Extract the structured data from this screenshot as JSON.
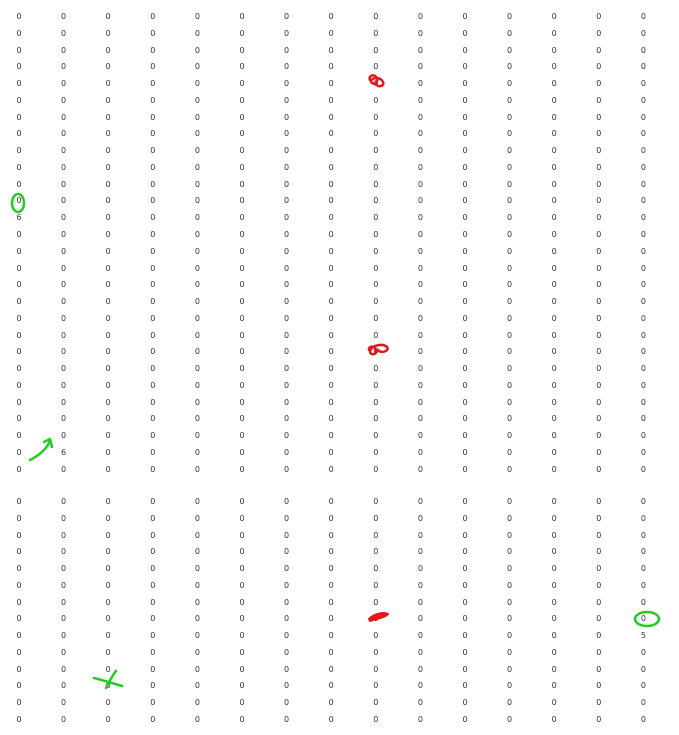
{
  "blocks": [
    {
      "rows": [
        [
          "0",
          "0",
          "0",
          "0",
          "0",
          "0",
          "0",
          "0",
          "0",
          "0",
          "0",
          "0",
          "0",
          "0",
          "0"
        ],
        [
          "0",
          "0",
          "0",
          "0",
          "0",
          "0",
          "0",
          "0",
          "0",
          "0",
          "0",
          "0",
          "0",
          "0",
          "0"
        ],
        [
          "0",
          "0",
          "0",
          "0",
          "0",
          "0",
          "0",
          "0",
          "0",
          "0",
          "0",
          "0",
          "0",
          "0",
          "0"
        ],
        [
          "0",
          "0",
          "0",
          "0",
          "0",
          "0",
          "0",
          "0",
          "0",
          "0",
          "0",
          "0",
          "0",
          "0",
          "0"
        ],
        [
          "0",
          "0",
          "0",
          "0",
          "0",
          "0",
          "0",
          "0",
          "0",
          "0",
          "0",
          "0",
          "0",
          "0",
          "0"
        ],
        [
          "0",
          "0",
          "0",
          "0",
          "0",
          "0",
          "0",
          "0",
          "0",
          "0",
          "0",
          "0",
          "0",
          "0",
          "0"
        ],
        [
          "0",
          "0",
          "0",
          "0",
          "0",
          "0",
          "0",
          "0",
          "0",
          "0",
          "0",
          "0",
          "0",
          "0",
          "0"
        ],
        [
          "0",
          "0",
          "0",
          "0",
          "0",
          "0",
          "0",
          "0",
          "0",
          "0",
          "0",
          "0",
          "0",
          "0",
          "0"
        ],
        [
          "0",
          "0",
          "0",
          "0",
          "0",
          "0",
          "0",
          "0",
          "0",
          "0",
          "0",
          "0",
          "0",
          "0",
          "0"
        ],
        [
          "0",
          "0",
          "0",
          "0",
          "0",
          "0",
          "0",
          "0",
          "0",
          "0",
          "0",
          "0",
          "0",
          "0",
          "0"
        ],
        [
          "0",
          "0",
          "0",
          "0",
          "0",
          "0",
          "0",
          "0",
          "0",
          "0",
          "0",
          "0",
          "0",
          "0",
          "0"
        ],
        [
          "0",
          "0",
          "0",
          "0",
          "0",
          "0",
          "0",
          "0",
          "0",
          "0",
          "0",
          "0",
          "0",
          "0",
          "0"
        ],
        [
          "6",
          "0",
          "0",
          "0",
          "0",
          "0",
          "0",
          "0",
          "0",
          "0",
          "0",
          "0",
          "0",
          "0",
          "0"
        ]
      ]
    },
    {
      "rows": [
        [
          "0",
          "0",
          "0",
          "0",
          "0",
          "0",
          "0",
          "0",
          "0",
          "0",
          "0",
          "0",
          "0",
          "0",
          "0"
        ],
        [
          "0",
          "0",
          "0",
          "0",
          "0",
          "0",
          "0",
          "0",
          "0",
          "0",
          "0",
          "0",
          "0",
          "0",
          "0"
        ],
        [
          "0",
          "0",
          "0",
          "0",
          "0",
          "0",
          "0",
          "0",
          "0",
          "0",
          "0",
          "0",
          "0",
          "0",
          "0"
        ],
        [
          "0",
          "0",
          "0",
          "0",
          "0",
          "0",
          "0",
          "0",
          "0",
          "0",
          "0",
          "0",
          "0",
          "0",
          "0"
        ],
        [
          "0",
          "0",
          "0",
          "0",
          "0",
          "0",
          "0",
          "0",
          "0",
          "0",
          "0",
          "0",
          "0",
          "0",
          "0"
        ],
        [
          "0",
          "0",
          "0",
          "0",
          "0",
          "0",
          "0",
          "0",
          "0",
          "0",
          "0",
          "0",
          "0",
          "0",
          "0"
        ],
        [
          "0",
          "0",
          "0",
          "0",
          "0",
          "0",
          "0",
          "0",
          "0",
          "0",
          "0",
          "0",
          "0",
          "0",
          "0"
        ],
        [
          "0",
          "0",
          "0",
          "0",
          "0",
          "0",
          "0",
          "0",
          "0",
          "0",
          "0",
          "0",
          "0",
          "0",
          "0"
        ],
        [
          "0",
          "0",
          "0",
          "0",
          "0",
          "0",
          "0",
          "0",
          "0",
          "0",
          "0",
          "0",
          "0",
          "0",
          "0"
        ],
        [
          "0",
          "0",
          "0",
          "0",
          "0",
          "0",
          "0",
          "0",
          "0",
          "0",
          "0",
          "0",
          "0",
          "0",
          "0"
        ],
        [
          "0",
          "0",
          "0",
          "0",
          "0",
          "0",
          "0",
          "0",
          "0",
          "0",
          "0",
          "0",
          "0",
          "0",
          "0"
        ],
        [
          "0",
          "0",
          "0",
          "0",
          "0",
          "0",
          "0",
          "0",
          "0",
          "0",
          "0",
          "0",
          "0",
          "0",
          "0"
        ],
        [
          "0",
          "0",
          "0",
          "0",
          "0",
          "0",
          "0",
          "0",
          "0",
          "0",
          "0",
          "0",
          "0",
          "0",
          "0"
        ],
        [
          "0",
          "6",
          "0",
          "0",
          "0",
          "0",
          "0",
          "0",
          "0",
          "0",
          "0",
          "0",
          "0",
          "0",
          "0"
        ],
        [
          "0",
          "0",
          "0",
          "0",
          "0",
          "0",
          "0",
          "0",
          "0",
          "0",
          "0",
          "0",
          "0",
          "0",
          "0"
        ]
      ]
    },
    {
      "rows": [
        [
          "0",
          "0",
          "0",
          "0",
          "0",
          "0",
          "0",
          "0",
          "0",
          "0",
          "0",
          "0",
          "0",
          "0",
          "0"
        ],
        [
          "0",
          "0",
          "0",
          "0",
          "0",
          "0",
          "0",
          "0",
          "0",
          "0",
          "0",
          "0",
          "0",
          "0",
          "0"
        ],
        [
          "0",
          "0",
          "0",
          "0",
          "0",
          "0",
          "0",
          "0",
          "0",
          "0",
          "0",
          "0",
          "0",
          "0",
          "0"
        ],
        [
          "0",
          "0",
          "0",
          "0",
          "0",
          "0",
          "0",
          "0",
          "0",
          "0",
          "0",
          "0",
          "0",
          "0",
          "0"
        ],
        [
          "0",
          "0",
          "0",
          "0",
          "0",
          "0",
          "0",
          "0",
          "0",
          "0",
          "0",
          "0",
          "0",
          "0",
          "0"
        ],
        [
          "0",
          "0",
          "0",
          "0",
          "0",
          "0",
          "0",
          "0",
          "0",
          "0",
          "0",
          "0",
          "0",
          "0",
          "0"
        ],
        [
          "0",
          "0",
          "0",
          "0",
          "0",
          "0",
          "0",
          "0",
          "0",
          "0",
          "0",
          "0",
          "0",
          "0",
          "0"
        ],
        [
          "0",
          "0",
          "0",
          "0",
          "0",
          "0",
          "0",
          "0",
          "0",
          "0",
          "0",
          "0",
          "0",
          "0",
          "0"
        ],
        [
          "0",
          "0",
          "0",
          "0",
          "0",
          "0",
          "0",
          "0",
          "0",
          "0",
          "0",
          "0",
          "0",
          "0",
          "5"
        ],
        [
          "0",
          "0",
          "0",
          "0",
          "0",
          "0",
          "0",
          "0",
          "0",
          "0",
          "0",
          "0",
          "0",
          "0",
          "0"
        ],
        [
          "0",
          "0",
          "0",
          "0",
          "0",
          "0",
          "0",
          "0",
          "0",
          "0",
          "0",
          "0",
          "0",
          "0",
          "0"
        ],
        [
          "0",
          "0",
          "0",
          "0",
          "0",
          "0",
          "0",
          "0",
          "0",
          "0",
          "0",
          "0",
          "0",
          "0",
          "0"
        ],
        [
          "0",
          "0",
          "0",
          "0",
          "0",
          "0",
          "0",
          "0",
          "0",
          "0",
          "0",
          "0",
          "0",
          "0",
          "0"
        ],
        [
          "0",
          "0",
          "0",
          "0",
          "0",
          "0",
          "0",
          "0",
          "0",
          "0",
          "0",
          "0",
          "0",
          "0",
          "0"
        ]
      ]
    }
  ],
  "colors": {
    "background": "#ffffff",
    "text": "#333333",
    "red_mark": "#e8161b",
    "green_mark": "#22cc22"
  }
}
